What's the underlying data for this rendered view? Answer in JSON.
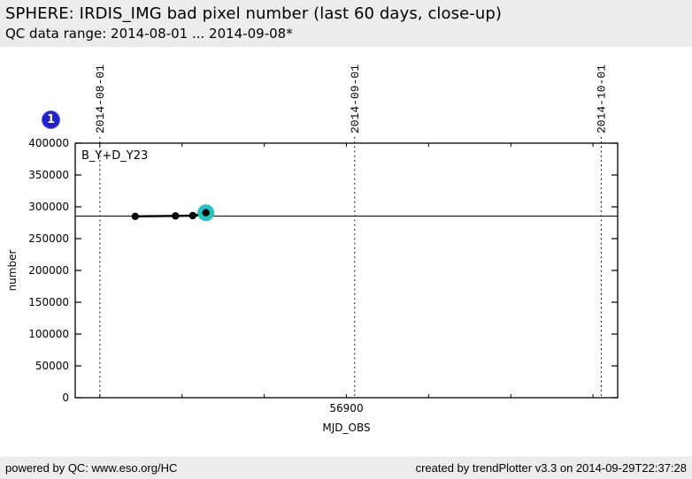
{
  "header": {
    "title": "SPHERE: IRDIS_IMG bad pixel number (last 60 days, close-up)",
    "subtitle": "QC data range: 2014-08-01 ... 2014-09-08*"
  },
  "plot_badge": "1",
  "chart_data": {
    "type": "scatter",
    "series_label": "B_Y+D_Y23",
    "xlabel": "MJD_OBS",
    "ylabel": "number",
    "xlim": [
      56867,
      56933
    ],
    "ylim": [
      0,
      400000
    ],
    "y_ticks": [
      0,
      50000,
      100000,
      150000,
      200000,
      250000,
      300000,
      350000,
      400000
    ],
    "x_minor_ticks": [
      56870,
      56880,
      56890,
      56900,
      56910,
      56920,
      56930
    ],
    "x_labeled_ticks": [
      {
        "value": 56900,
        "label": "56900"
      }
    ],
    "date_gridlines": [
      {
        "mjd": 56870,
        "label": "2014-08-01"
      },
      {
        "mjd": 56901,
        "label": "2014-09-01"
      },
      {
        "mjd": 56931,
        "label": "2014-10-01"
      }
    ],
    "reference_line_y": 285400,
    "points": [
      {
        "x": 56874.3,
        "y": 285000,
        "highlighted": false
      },
      {
        "x": 56879.2,
        "y": 285700,
        "highlighted": false
      },
      {
        "x": 56881.3,
        "y": 286100,
        "highlighted": false
      },
      {
        "x": 56882.9,
        "y": 290700,
        "highlighted": true
      }
    ],
    "colors": {
      "point": "#000000",
      "line": "#000000",
      "highlight": "#26c3c3",
      "badge": "#2222cc",
      "band_bg": "#ececec"
    }
  },
  "footer": {
    "left": "powered by QC: www.eso.org/HC",
    "right": "created by trendPlotter v3.3 on 2014-09-29T22:37:28"
  }
}
